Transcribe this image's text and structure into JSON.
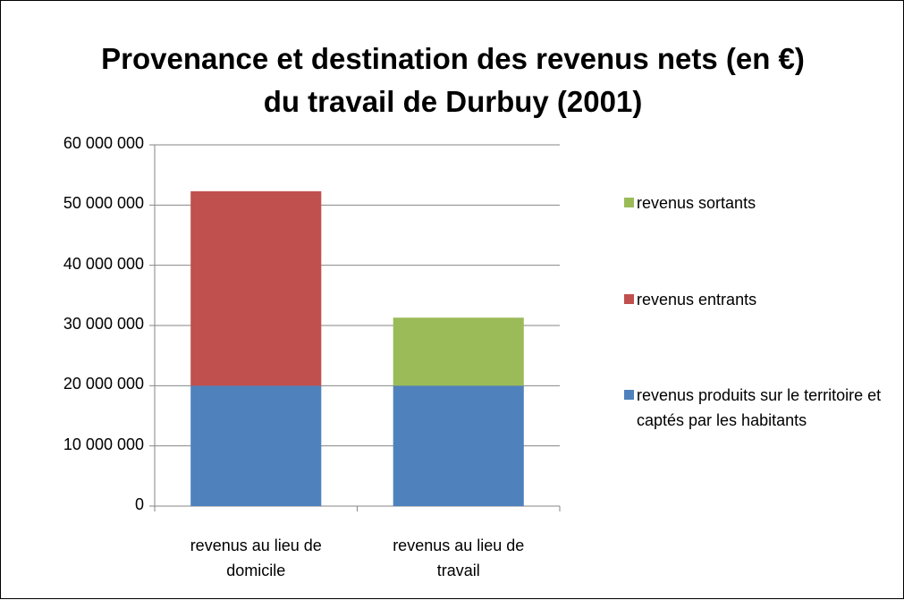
{
  "chart_data": {
    "type": "bar",
    "stacked": true,
    "title": [
      "Provenance et destination des revenus nets (en €)",
      "du travail de Durbuy (2001)"
    ],
    "categories": [
      "revenus au lieu de domicile",
      "revenus au lieu de travail"
    ],
    "series": [
      {
        "name": "revenus produits sur le territoire et captés par les habitants",
        "color": "#4f81bd",
        "values": [
          20000000,
          20000000
        ]
      },
      {
        "name": "revenus entrants",
        "color": "#c0504d",
        "values": [
          32300000,
          0
        ]
      },
      {
        "name": "revenus sortants",
        "color": "#9bbb59",
        "values": [
          0,
          11300000
        ]
      }
    ],
    "ylim": [
      0,
      60000000
    ],
    "yticks": [
      0,
      {
        "value": 10000000,
        "label": "10 000 000"
      },
      {
        "value": 20000000,
        "label": "20 000 000"
      },
      {
        "value": 30000000,
        "label": "30 000 000"
      },
      {
        "value": 40000000,
        "label": "40 000 000"
      },
      {
        "value": 50000000,
        "label": "50 000 000"
      },
      {
        "value": 60000000,
        "label": "60 000 000"
      }
    ],
    "grid": true,
    "legend": "right"
  }
}
